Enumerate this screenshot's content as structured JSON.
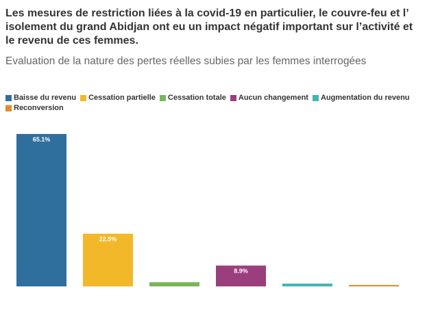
{
  "title": "Les mesures de restriction liées à la covid-19 en particulier, le couvre-feu et l’ isolement du grand Abidjan ont eu un impact négatif important sur l’activité et le revenu de ces femmes.",
  "subtitle": "Evaluation de la nature des pertes réelles subies par les femmes interrogées",
  "chart_data": {
    "type": "bar",
    "categories": [
      "Baisse du revenu",
      "Cessation partielle",
      "Cessation totale",
      "Aucun changement",
      "Augmentation du revenu",
      "Reconversion"
    ],
    "values": [
      65.1,
      22.5,
      1.8,
      8.9,
      1.2,
      0.6
    ],
    "data_labels": [
      "65.1%",
      "22.5%",
      "",
      "8.9%",
      "",
      ""
    ],
    "colors": [
      "#2e6f9e",
      "#f2b829",
      "#79b65b",
      "#9b3e7e",
      "#43b5b3",
      "#e3892a"
    ],
    "ylim": [
      0,
      65.1
    ],
    "legend_position": "top-left",
    "grid": false
  }
}
